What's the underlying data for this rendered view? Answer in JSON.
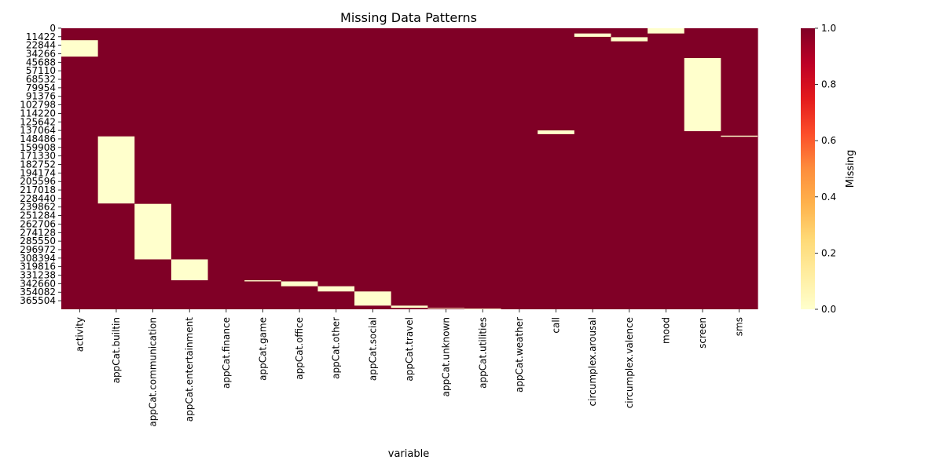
{
  "chart_data": {
    "type": "heatmap",
    "title": "Missing Data Patterns",
    "xlabel": "variable",
    "ylabel": "",
    "colorbar_label": "Missing",
    "colorbar_ticks": [
      "0.0",
      "0.2",
      "0.4",
      "0.6",
      "0.8",
      "1.0"
    ],
    "value_range": [
      0,
      1
    ],
    "colormap": [
      "#ffffcc",
      "#ffeda0",
      "#fed976",
      "#feb24c",
      "#fd8d3c",
      "#fc4e2a",
      "#e31a1c",
      "#bd0026",
      "#800026"
    ],
    "row_count": 376912,
    "row_tick_labels": [
      "0",
      "11422",
      "22844",
      "34266",
      "45688",
      "57110",
      "68532",
      "79954",
      "91376",
      "102798",
      "114220",
      "125642",
      "137064",
      "148486",
      "159908",
      "171330",
      "182752",
      "194174",
      "205596",
      "217018",
      "228440",
      "239862",
      "251284",
      "262706",
      "274128",
      "285550",
      "296972",
      "308394",
      "319816",
      "331238",
      "342660",
      "354082",
      "365504"
    ],
    "variables": [
      "activity",
      "appCat.builtin",
      "appCat.communication",
      "appCat.entertainment",
      "appCat.finance",
      "appCat.game",
      "appCat.office",
      "appCat.other",
      "appCat.social",
      "appCat.travel",
      "appCat.unknown",
      "appCat.utilities",
      "appCat.weather",
      "call",
      "circumplex.arousal",
      "circumplex.valence",
      "mood",
      "screen",
      "sms"
    ],
    "default_value": 1,
    "present_segments": [
      {
        "variable": "activity",
        "start": 16000,
        "end": 38000,
        "value": 0
      },
      {
        "variable": "appCat.builtin",
        "start": 145000,
        "end": 235000,
        "value": 0
      },
      {
        "variable": "appCat.communication",
        "start": 235500,
        "end": 310000,
        "value": 0
      },
      {
        "variable": "appCat.entertainment",
        "start": 310000,
        "end": 338000,
        "value": 0
      },
      {
        "variable": "appCat.game",
        "start": 338000,
        "end": 339500,
        "value": 0
      },
      {
        "variable": "appCat.office",
        "start": 339500,
        "end": 346000,
        "value": 0
      },
      {
        "variable": "appCat.other",
        "start": 346000,
        "end": 353000,
        "value": 0
      },
      {
        "variable": "appCat.social",
        "start": 353000,
        "end": 372000,
        "value": 0
      },
      {
        "variable": "appCat.travel",
        "start": 372000,
        "end": 375000,
        "value": 0
      },
      {
        "variable": "appCat.unknown",
        "start": 375000,
        "end": 376000,
        "value": 0
      },
      {
        "variable": "appCat.utilities",
        "start": 376000,
        "end": 376912,
        "value": 0
      },
      {
        "variable": "call",
        "start": 137000,
        "end": 142000,
        "value": 0
      },
      {
        "variable": "circumplex.arousal",
        "start": 7000,
        "end": 11500,
        "value": 0
      },
      {
        "variable": "circumplex.valence",
        "start": 12000,
        "end": 17500,
        "value": 0
      },
      {
        "variable": "mood",
        "start": 0,
        "end": 7000,
        "value": 0
      },
      {
        "variable": "screen",
        "start": 40000,
        "end": 138000,
        "value": 0
      },
      {
        "variable": "sms",
        "start": 144000,
        "end": 145500,
        "value": 0
      }
    ]
  }
}
